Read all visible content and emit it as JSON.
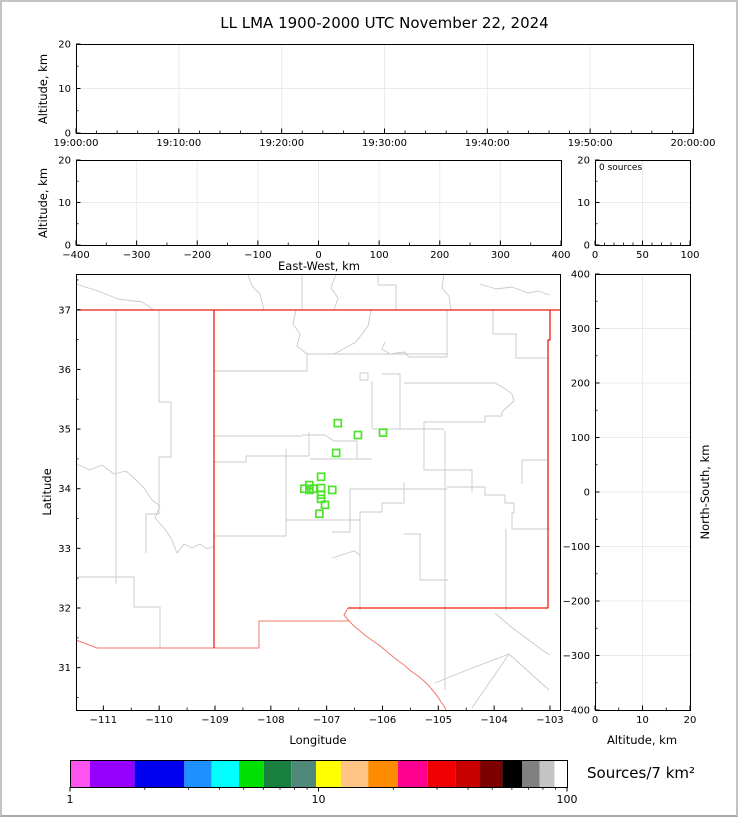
{
  "title": "LL LMA 1900-2000 UTC November 22, 2024",
  "labels": {
    "altitude": "Altitude, km",
    "east_west": "East-West, km",
    "latitude": "Latitude",
    "longitude": "Longitude",
    "north_south": "North-South, km",
    "sources_annotation": "0 sources",
    "colorbar": "Sources/7 km²"
  },
  "colors": {
    "state_border": "#ee1c12",
    "state_border_light": "#f4776b",
    "county_line": "#c9c9c9",
    "marker_green": "#4ce32a",
    "grid": "#ebebeb",
    "axis": "#000000"
  },
  "chart_data": [
    {
      "id": "time-height",
      "type": "scatter",
      "title": "",
      "xlabel": "",
      "ylabel": "Altitude, km",
      "points": [],
      "x": {
        "min": 0,
        "max": 3600,
        "minor": 120,
        "ticks": [
          {
            "v": 0,
            "l": "19:00:00"
          },
          {
            "v": 600,
            "l": "19:10:00"
          },
          {
            "v": 1200,
            "l": "19:20:00"
          },
          {
            "v": 1800,
            "l": "19:30:00"
          },
          {
            "v": 2400,
            "l": "19:40:00"
          },
          {
            "v": 3000,
            "l": "19:50:00"
          },
          {
            "v": 3600,
            "l": "20:00:00"
          }
        ]
      },
      "y": {
        "min": 0,
        "max": 20,
        "minor": 5,
        "ticks": [
          {
            "v": 0,
            "l": "0"
          },
          {
            "v": 10,
            "l": "10"
          },
          {
            "v": 20,
            "l": "20"
          }
        ]
      }
    },
    {
      "id": "ew-height",
      "type": "scatter",
      "xlabel": "East-West, km",
      "ylabel": "Altitude, km",
      "points": [],
      "x": {
        "min": -400,
        "max": 400,
        "minor": 50,
        "ticks": [
          {
            "v": -400,
            "l": "−400"
          },
          {
            "v": -300,
            "l": "−300"
          },
          {
            "v": -200,
            "l": "−200"
          },
          {
            "v": -100,
            "l": "−100"
          },
          {
            "v": 0,
            "l": "0"
          },
          {
            "v": 100,
            "l": "100"
          },
          {
            "v": 200,
            "l": "200"
          },
          {
            "v": 300,
            "l": "300"
          },
          {
            "v": 400,
            "l": "400"
          }
        ]
      },
      "y": {
        "min": 0,
        "max": 20,
        "minor": 5,
        "ticks": [
          {
            "v": 0,
            "l": "0"
          },
          {
            "v": 10,
            "l": "10"
          },
          {
            "v": 20,
            "l": "20"
          }
        ]
      }
    },
    {
      "id": "alt-histogram",
      "type": "histogram",
      "annotation": "0 sources",
      "points": [],
      "x": {
        "min": 0,
        "max": 100,
        "minor": 10,
        "ticks": [
          {
            "v": 0,
            "l": "0"
          },
          {
            "v": 50,
            "l": "50"
          },
          {
            "v": 100,
            "l": "100"
          }
        ]
      },
      "y": {
        "min": 0,
        "max": 20,
        "minor": 5,
        "ticks": [
          {
            "v": 0,
            "l": "0"
          },
          {
            "v": 10,
            "l": "10"
          },
          {
            "v": 20,
            "l": "20"
          }
        ]
      }
    },
    {
      "id": "plan-view-map",
      "type": "scatter",
      "xlabel": "Longitude",
      "ylabel": "Latitude",
      "grid": false,
      "points": [
        {
          "lon": -106.8,
          "lat": 35.1
        },
        {
          "lon": -106.44,
          "lat": 34.9
        },
        {
          "lon": -105.99,
          "lat": 34.94
        },
        {
          "lon": -106.83,
          "lat": 34.6
        },
        {
          "lon": -107.1,
          "lat": 34.2
        },
        {
          "lon": -107.31,
          "lat": 34.06
        },
        {
          "lon": -107.4,
          "lat": 34.0
        },
        {
          "lon": -107.31,
          "lat": 33.98
        },
        {
          "lon": -107.24,
          "lat": 34.0
        },
        {
          "lon": -107.1,
          "lat": 34.01
        },
        {
          "lon": -106.9,
          "lat": 33.98
        },
        {
          "lon": -107.1,
          "lat": 33.9
        },
        {
          "lon": -107.1,
          "lat": 33.83
        },
        {
          "lon": -107.03,
          "lat": 33.73
        },
        {
          "lon": -107.13,
          "lat": 33.58
        }
      ],
      "x": {
        "min": -111.49,
        "max": -102.82,
        "minor": 0.5,
        "ticks": [
          {
            "v": -111,
            "l": "−111"
          },
          {
            "v": -110,
            "l": "−110"
          },
          {
            "v": -109,
            "l": "−109"
          },
          {
            "v": -108,
            "l": "−108"
          },
          {
            "v": -107,
            "l": "−107"
          },
          {
            "v": -106,
            "l": "−106"
          },
          {
            "v": -105,
            "l": "−105"
          },
          {
            "v": -104,
            "l": "−104"
          },
          {
            "v": -103,
            "l": "−103"
          }
        ]
      },
      "y": {
        "min": 30.29,
        "max": 37.6,
        "minor": 0.5,
        "ticks": [
          {
            "v": 31,
            "l": "31"
          },
          {
            "v": 32,
            "l": "32"
          },
          {
            "v": 33,
            "l": "33"
          },
          {
            "v": 34,
            "l": "34"
          },
          {
            "v": 35,
            "l": "35"
          },
          {
            "v": 36,
            "l": "36"
          },
          {
            "v": 37,
            "l": "37"
          }
        ]
      }
    },
    {
      "id": "ns-height",
      "type": "scatter",
      "xlabel": "Altitude, km",
      "ylabel": "North-South, km",
      "points": [],
      "x": {
        "min": 0,
        "max": 20,
        "minor": 5,
        "ticks": [
          {
            "v": 0,
            "l": "0"
          },
          {
            "v": 10,
            "l": "10"
          },
          {
            "v": 20,
            "l": "20"
          }
        ]
      },
      "y": {
        "min": -400,
        "max": 400,
        "minor": 50,
        "ticks": [
          {
            "v": -400,
            "l": "−400"
          },
          {
            "v": -300,
            "l": "−300"
          },
          {
            "v": -200,
            "l": "−200"
          },
          {
            "v": -100,
            "l": "−100"
          },
          {
            "v": 0,
            "l": "0"
          },
          {
            "v": 100,
            "l": "100"
          },
          {
            "v": 200,
            "l": "200"
          },
          {
            "v": 300,
            "l": "300"
          },
          {
            "v": 400,
            "l": "400"
          }
        ]
      }
    },
    {
      "id": "colorbar",
      "type": "colorbar",
      "label": "Sources/7 km²",
      "scale": "log",
      "min": 1,
      "max": 100,
      "major_ticks": [
        {
          "v": 1,
          "l": "1"
        },
        {
          "v": 10,
          "l": "10"
        },
        {
          "v": 100,
          "l": "100"
        }
      ],
      "minor_ticks": [
        2,
        3,
        4,
        5,
        6,
        7,
        8,
        9,
        20,
        30,
        40,
        50,
        60,
        70,
        80,
        90
      ],
      "segment_colors": [
        "#ff55f0",
        "#9500ff",
        "#0000f0",
        "#1e90ff",
        "#00ffff",
        "#00e000",
        "#1a8040",
        "#4f8878",
        "#ffff00",
        "#ffc584",
        "#ff8c00",
        "#ff0090",
        "#f00000",
        "#c80000",
        "#7d0000",
        "#000000",
        "#808080",
        "#c4c4c4",
        "#ffffff"
      ],
      "segment_stops_pct": [
        0,
        4,
        13,
        23,
        28.5,
        34,
        39,
        44.5,
        49.5,
        54.5,
        60,
        66,
        72,
        77.5,
        82.5,
        87,
        91,
        94.5,
        97.5,
        100
      ]
    }
  ],
  "map_geometry": {
    "state_lines": [
      "0,36 484,36",
      "474,36 474,66 472,66 472,334 272,334",
      "138,36 138,374"
    ],
    "state_lines_light": [
      "0,366 21,374 183,374 183,347 273,347",
      "272,334 268,341 273,347 278,352 284,357 290,362 297,367 303,371 309,376 315,381 321,386 328,391 335,397 342,402 348,407 353,412 358,418 362,423 365,428 368,432 370,436"
    ],
    "county_lines": [
      "0,10 22,17 42,25 66,28 78,36",
      "172,0 176,12 184,20 188,36",
      "226,0 226,36",
      "302,0 302,11 320,11 320,36",
      "368,0 366,14 373,22 375,36",
      "404,10 420,15 436,13 452,19 462,17 474,21",
      "260,0 255,14 262,24 258,36",
      "40,36 40,310",
      "83,36 83,128 95,128 95,183 83,183 83,240 70,240 70,279",
      "0,190 14,196 26,191 38,200 50,197 60,206 68,214 76,226 84,232 79,244 88,254 95,264 101,279 108,270 116,274 124,270 131,275 138,272",
      "0,303 58,303 58,333 84,333 84,374",
      "138,97 231,97",
      "231,97 231,80 258,80",
      "258,80 280,68 292,52 295,36",
      "220,36 217,50 224,60 221,72 231,80",
      "258,80 372,80",
      "371,36 371,83",
      "309,68 306,75 314,80 328,78 333,83 353,83 371,83",
      "328,109 419,109",
      "419,109 428,114 436,120 438,127 430,134 426,138 426,142 409,142 409,148 348,148",
      "348,148 348,196 396,196 396,218",
      "306,100 324,100 324,155",
      "284,99 292,99 292,106 284,106 284,99",
      "296,107 296,154",
      "296,155 368,155",
      "369,157 369,337",
      "274,215 371,215",
      "226,161 249,161 258,167 281,167 281,185",
      "234,185 296,185",
      "138,162 226,162",
      "138,188 170,188 170,182 233,182",
      "233,158 233,182",
      "210,175 210,262",
      "138,262 210,262",
      "210,246 284,246",
      "256,258 274,258 274,215",
      "256,284 278,277 284,281",
      "284,238 284,337",
      "284,238 306,238 306,229 328,229 328,208",
      "328,260 344,260 344,306",
      "344,306 372,306",
      "371,213 409,213",
      "409,213 409,221 429,221 429,229 438,229 438,239 436,239 436,255 474,255",
      "430,255 430,337",
      "417,36 417,60 440,60 440,84 472,84",
      "446,186 446,210",
      "446,186 472,186",
      "369,337 369,416",
      "419,339 427,346 434,352 442,358 450,364 458,370 466,376 474,381",
      "359,409 391,396 433,380",
      "433,380 396,434",
      "433,380 473,416"
    ]
  }
}
